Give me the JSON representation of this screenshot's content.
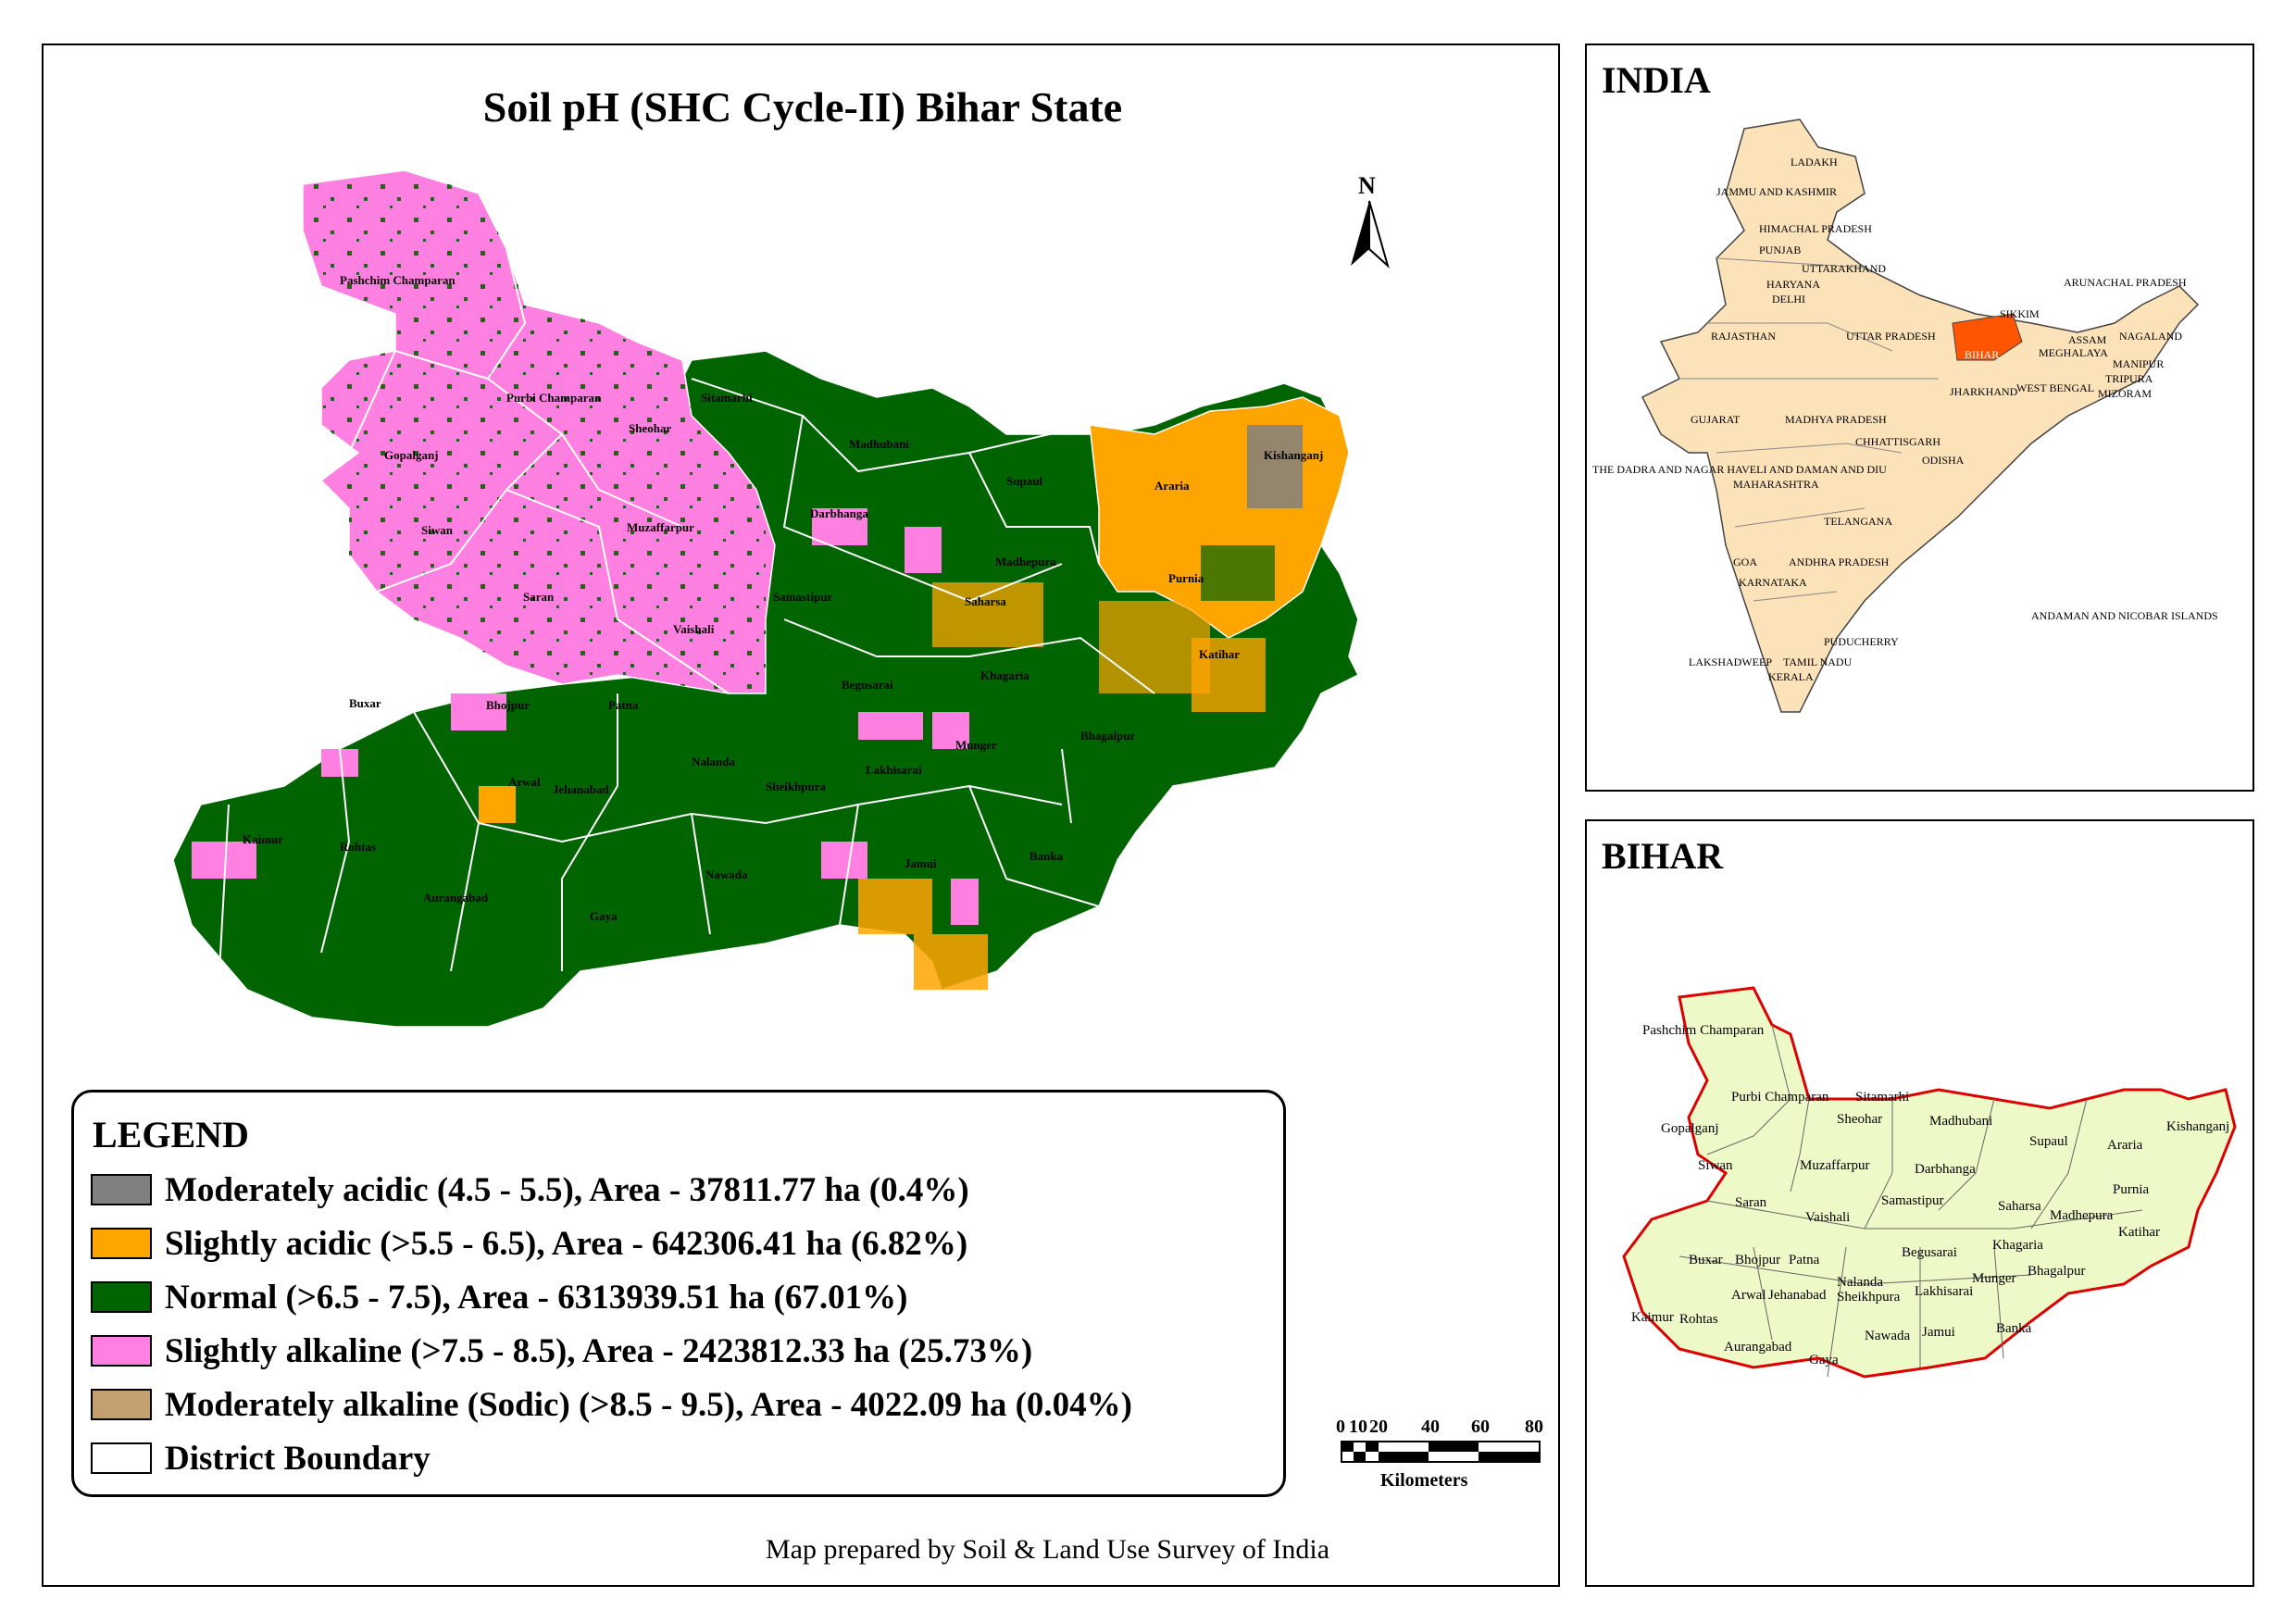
{
  "main_map": {
    "title": "Soil pH (SHC Cycle-II) Bihar State",
    "north_arrow_label": "N",
    "districts": [
      "Pashchim Champaran",
      "Purbi Champaran",
      "Gopalganj",
      "Siwan",
      "Saran",
      "Muzaffarpur",
      "Sitamarhi",
      "Sheohar",
      "Madhubani",
      "Supaul",
      "Araria",
      "Kishanganj",
      "Darbhanga",
      "Madhepura",
      "Purnia",
      "Saharsa",
      "Samastipur",
      "Vaishali",
      "Katihar",
      "Khagaria",
      "Begusarai",
      "Buxar",
      "Bhojpur",
      "Patna",
      "Bhagalpur",
      "Munger",
      "Nalanda",
      "Lakhisarai",
      "Arwal",
      "Jehanabad",
      "Sheikhpura",
      "Kaimur",
      "Rohtas",
      "Aurangabad",
      "Gaya",
      "Nawada",
      "Jamui",
      "Banka"
    ],
    "colors": {
      "moderately_acidic": "#808080",
      "slightly_acidic": "#FFA500",
      "normal": "#006400",
      "slightly_alkaline": "#FF80E0",
      "moderately_alkaline": "#C4A070",
      "district_boundary": "#FFFFFF"
    }
  },
  "legend": {
    "title": "LEGEND",
    "items": [
      {
        "label": "Moderately acidic (4.5 - 5.5), Area - 37811.77 ha (0.4%)",
        "color": "#808080"
      },
      {
        "label": "Slightly acidic (>5.5 - 6.5), Area - 642306.41 ha (6.82%)",
        "color": "#FFA500"
      },
      {
        "label": "Normal (>6.5 - 7.5), Area - 6313939.51 ha (67.01%)",
        "color": "#006400"
      },
      {
        "label": "Slightly alkaline (>7.5 - 8.5), Area - 2423812.33 ha (25.73%)",
        "color": "#FF80E0"
      },
      {
        "label": "Moderately alkaline (Sodic) (>8.5 - 9.5), Area - 4022.09 ha (0.04%)",
        "color": "#C4A070"
      },
      {
        "label": "District Boundary",
        "color": "#FFFFFF"
      }
    ]
  },
  "scale_bar": {
    "ticks": [
      "0",
      "10",
      "20",
      "40",
      "60",
      "80"
    ],
    "unit": "Kilometers"
  },
  "credit": "Map prepared by Soil & Land Use Survey of India",
  "india_inset": {
    "title": "INDIA",
    "fill": "#FCE2B8",
    "highlight": "#FF5500",
    "labels": [
      "LADAKH",
      "JAMMU AND KASHMIR",
      "HIMACHAL PRADESH",
      "PUNJAB",
      "UTTARAKHAND",
      "HARYANA",
      "DELHI",
      "RAJASTHAN",
      "UTTAR PRADESH",
      "BIHAR",
      "SIKKIM",
      "ARUNACHAL PRADESH",
      "ASSAM",
      "NAGALAND",
      "MEGHALAYA",
      "MANIPUR",
      "TRIPURA",
      "MIZORAM",
      "WEST BENGAL",
      "JHARKHAND",
      "GUJARAT",
      "MADHYA PRADESH",
      "CHHATTISGARH",
      "ODISHA",
      "THE DADRA AND NAGAR HAVELI AND DAMAN AND DIU",
      "MAHARASHTRA",
      "TELANGANA",
      "GOA",
      "ANDHRA PRADESH",
      "KARNATAKA",
      "ANDAMAN AND NICOBAR ISLANDS",
      "PUDUCHERRY",
      "LAKSHADWEEP",
      "TAMIL NADU",
      "KERALA"
    ]
  },
  "bihar_inset": {
    "title": "BIHAR",
    "fill": "#EEF9C8",
    "outline": "#DD0000",
    "labels": [
      "Pashchim Champaran",
      "Purbi Champaran",
      "Sitamarhi",
      "Gopalganj",
      "Sheohar",
      "Madhubani",
      "Supaul",
      "Araria",
      "Kishanganj",
      "Siwan",
      "Muzaffarpur",
      "Darbhanga",
      "Saran",
      "Vaishali",
      "Samastipur",
      "Saharsa",
      "Madhepura",
      "Purnia",
      "Katihar",
      "Begusarai",
      "Khagaria",
      "Buxar",
      "Bhojpur",
      "Patna",
      "Bhagalpur",
      "Munger",
      "Nalanda",
      "Arwal",
      "Jehanabad",
      "Sheikhpura",
      "Lakhisarai",
      "Kaimur",
      "Rohtas",
      "Jamui",
      "Banka",
      "Nawada",
      "Aurangabad",
      "Gaya"
    ]
  }
}
